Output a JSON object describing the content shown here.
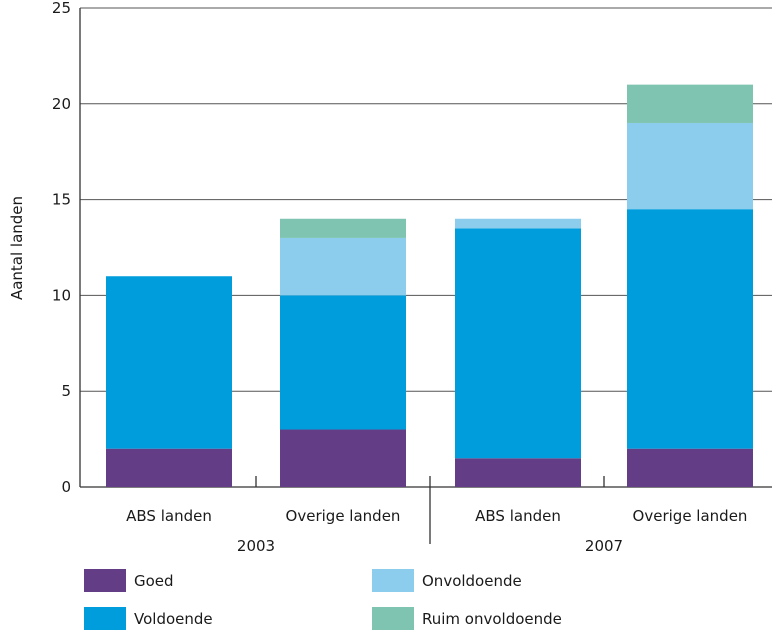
{
  "chart_data": {
    "type": "bar",
    "stacked": true,
    "title": "",
    "xlabel": "",
    "ylabel": "Aantal landen",
    "ylim": [
      0,
      25
    ],
    "yticks": [
      0,
      5,
      10,
      15,
      20,
      25
    ],
    "grid": true,
    "legend_position": "bottom",
    "groups": [
      {
        "label": "2003",
        "categories": [
          "ABS landen",
          "Overige landen"
        ]
      },
      {
        "label": "2007",
        "categories": [
          "ABS landen",
          "Overige landen"
        ]
      }
    ],
    "categories": [
      "ABS landen",
      "Overige landen",
      "ABS landen",
      "Overige landen"
    ],
    "series": [
      {
        "name": "Goed",
        "color": "#633e86",
        "values": [
          2,
          3,
          1.5,
          2
        ]
      },
      {
        "name": "Voldoende",
        "color": "#009ddc",
        "values": [
          9,
          7,
          12,
          12.5
        ]
      },
      {
        "name": "Onvoldoende",
        "color": "#8ccdee",
        "values": [
          0,
          3,
          0.5,
          4.5
        ]
      },
      {
        "name": "Ruim onvoldoende",
        "color": "#7ec4b0",
        "values": [
          0,
          1,
          0,
          2
        ]
      }
    ]
  }
}
